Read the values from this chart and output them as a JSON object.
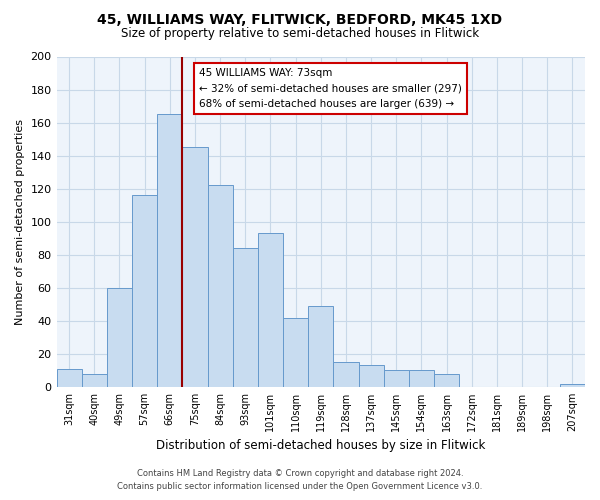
{
  "title": "45, WILLIAMS WAY, FLITWICK, BEDFORD, MK45 1XD",
  "subtitle": "Size of property relative to semi-detached houses in Flitwick",
  "xlabel": "Distribution of semi-detached houses by size in Flitwick",
  "ylabel": "Number of semi-detached properties",
  "bin_labels": [
    "31sqm",
    "40sqm",
    "49sqm",
    "57sqm",
    "66sqm",
    "75sqm",
    "84sqm",
    "93sqm",
    "101sqm",
    "110sqm",
    "119sqm",
    "128sqm",
    "137sqm",
    "145sqm",
    "154sqm",
    "163sqm",
    "172sqm",
    "181sqm",
    "189sqm",
    "198sqm",
    "207sqm"
  ],
  "bar_values": [
    11,
    8,
    60,
    116,
    165,
    145,
    122,
    84,
    93,
    42,
    49,
    15,
    13,
    10,
    10,
    8,
    0,
    0,
    0,
    0,
    2
  ],
  "bar_color": "#c8dcf0",
  "bar_edge_color": "#6699cc",
  "highlight_bar_index": 4,
  "red_line_index": 5,
  "highlight_color": "#990000",
  "ylim": [
    0,
    200
  ],
  "yticks": [
    0,
    20,
    40,
    60,
    80,
    100,
    120,
    140,
    160,
    180,
    200
  ],
  "annotation_title": "45 WILLIAMS WAY: 73sqm",
  "annotation_line1": "← 32% of semi-detached houses are smaller (297)",
  "annotation_line2": "68% of semi-detached houses are larger (639) →",
  "annotation_box_facecolor": "#ffffff",
  "annotation_box_edgecolor": "#cc0000",
  "footer_line1": "Contains HM Land Registry data © Crown copyright and database right 2024.",
  "footer_line2": "Contains public sector information licensed under the Open Government Licence v3.0.",
  "grid_color": "#c8d8e8",
  "background_color": "#ffffff",
  "ax_background_color": "#eef4fb"
}
